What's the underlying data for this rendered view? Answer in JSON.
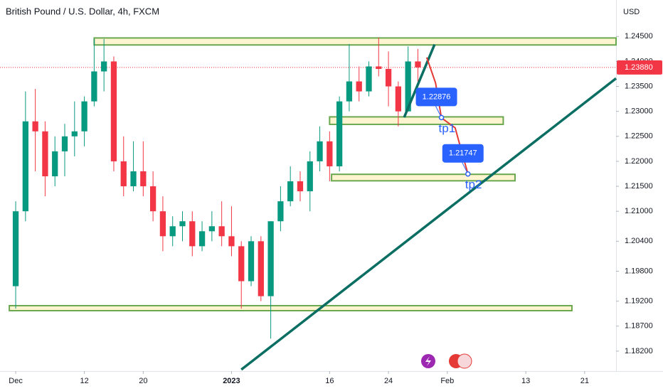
{
  "chart_data": {
    "type": "candlestick",
    "title": "British Pound / U.S. Dollar, 4h, FXCM",
    "y_axis_unit": "USD",
    "grid": false,
    "up_color": "#089981",
    "down_color": "#f23645",
    "xlim": [
      -1.6,
      61.2
    ],
    "ylim": [
      1.178,
      1.2523
    ],
    "xticks": [
      {
        "value": 0,
        "label": "Dec"
      },
      {
        "value": 7,
        "label": "12"
      },
      {
        "value": 13,
        "label": "20"
      },
      {
        "value": 22,
        "label": "2023"
      },
      {
        "value": 32,
        "label": "16"
      },
      {
        "value": 38,
        "label": "24"
      },
      {
        "value": 44,
        "label": "Feb"
      },
      {
        "value": 52,
        "label": "13"
      },
      {
        "value": 58,
        "label": "21"
      }
    ],
    "yticks": [
      {
        "value": 1.245,
        "label": "1.24500"
      },
      {
        "value": 1.24,
        "label": "1.24000"
      },
      {
        "value": 1.235,
        "label": "1.23500"
      },
      {
        "value": 1.23,
        "label": "1.23000"
      },
      {
        "value": 1.225,
        "label": "1.22500"
      },
      {
        "value": 1.22,
        "label": "1.22000"
      },
      {
        "value": 1.215,
        "label": "1.21500"
      },
      {
        "value": 1.21,
        "label": "1.21000"
      },
      {
        "value": 1.204,
        "label": "1.20400"
      },
      {
        "value": 1.198,
        "label": "1.19800"
      },
      {
        "value": 1.192,
        "label": "1.19200"
      },
      {
        "value": 1.187,
        "label": "1.18700"
      },
      {
        "value": 1.182,
        "label": "1.18200"
      }
    ],
    "x": [
      0,
      1,
      2,
      3,
      4,
      5,
      6,
      7,
      8,
      9,
      10,
      11,
      12,
      13,
      14,
      15,
      16,
      17,
      18,
      19,
      20,
      21,
      22,
      23,
      24,
      25,
      26,
      27,
      28,
      29,
      30,
      31,
      32,
      33,
      34,
      35,
      36,
      37,
      38,
      39,
      40,
      41
    ],
    "open": [
      1.195,
      1.21,
      1.228,
      1.226,
      1.217,
      1.222,
      1.225,
      1.226,
      1.232,
      1.238,
      1.24,
      1.22,
      1.215,
      1.218,
      1.215,
      1.21,
      1.205,
      1.207,
      1.208,
      1.203,
      1.206,
      1.207,
      1.205,
      1.203,
      1.196,
      1.204,
      1.193,
      1.208,
      1.212,
      1.216,
      1.214,
      1.22,
      1.224,
      1.219,
      1.232,
      1.236,
      1.234,
      1.239,
      1.2385,
      1.235,
      1.23,
      1.24
    ],
    "high": [
      1.212,
      1.234,
      1.2345,
      1.228,
      1.225,
      1.2275,
      1.232,
      1.233,
      1.2445,
      1.2445,
      1.241,
      1.225,
      1.224,
      1.224,
      1.218,
      1.213,
      1.209,
      1.21,
      1.21,
      1.208,
      1.21,
      1.212,
      1.211,
      1.204,
      1.205,
      1.205,
      1.208,
      1.215,
      1.219,
      1.218,
      1.222,
      1.227,
      1.226,
      1.233,
      1.2435,
      1.239,
      1.24,
      1.2448,
      1.242,
      1.236,
      1.243,
      1.2425
    ],
    "low": [
      1.1905,
      1.208,
      1.218,
      1.213,
      1.215,
      1.217,
      1.221,
      1.223,
      1.231,
      1.234,
      1.218,
      1.213,
      1.214,
      1.213,
      1.208,
      1.202,
      1.203,
      1.204,
      1.201,
      1.202,
      1.204,
      1.203,
      1.201,
      1.1905,
      1.195,
      1.192,
      1.1845,
      1.206,
      1.211,
      1.212,
      1.21,
      1.218,
      1.216,
      1.218,
      1.23,
      1.232,
      1.233,
      1.237,
      1.231,
      1.227,
      1.23,
      1.236
    ],
    "close": [
      1.21,
      1.228,
      1.226,
      1.217,
      1.222,
      1.225,
      1.226,
      1.232,
      1.238,
      1.24,
      1.22,
      1.215,
      1.218,
      1.215,
      1.21,
      1.205,
      1.207,
      1.208,
      1.203,
      1.206,
      1.207,
      1.205,
      1.203,
      1.196,
      1.204,
      1.193,
      1.208,
      1.212,
      1.216,
      1.214,
      1.22,
      1.224,
      1.219,
      1.232,
      1.236,
      1.234,
      1.239,
      1.2385,
      1.235,
      1.23,
      1.24,
      1.2388
    ],
    "last_price": {
      "value": 1.2388,
      "label": "1.23880"
    },
    "zones": [
      {
        "x": [
          8.0,
          61.2
        ],
        "y": [
          1.2433,
          1.2447
        ]
      },
      {
        "x": [
          32.0,
          49.7
        ],
        "y": [
          1.2274,
          1.2289
        ]
      },
      {
        "x": [
          32.2,
          50.9
        ],
        "y": [
          1.2161,
          1.2174
        ]
      },
      {
        "x": [
          -0.65,
          56.7
        ],
        "y": [
          1.1901,
          1.1911
        ]
      }
    ],
    "lines": [
      {
        "x": [
          23.0,
          61.2
        ],
        "y": [
          1.1783,
          1.2366
        ]
      },
      {
        "x": [
          39.6,
          42.7
        ],
        "y": [
          1.2288,
          1.2434
        ]
      }
    ],
    "projection": {
      "x": [
        41.9,
        42.8,
        43.4,
        44.8,
        45.5,
        46.1
      ],
      "y": [
        1.2408,
        1.2357,
        1.2287,
        1.2267,
        1.2217,
        1.2175
      ]
    },
    "targets": [
      {
        "name": "tp1",
        "x": 43.4,
        "value": 1.22876,
        "label": "1.22876"
      },
      {
        "name": "tp2",
        "x": 46.1,
        "value": 1.21747,
        "label": "1.21747"
      }
    ]
  }
}
